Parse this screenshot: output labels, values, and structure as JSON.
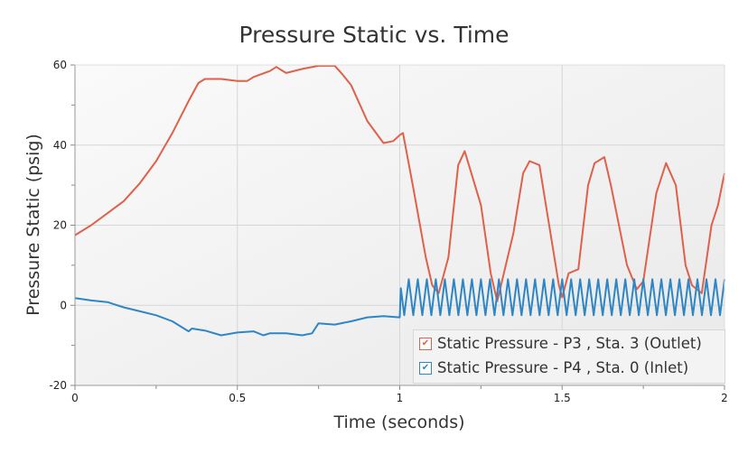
{
  "chart_data": {
    "type": "line",
    "title": "Pressure Static vs. Time",
    "xlabel": "Time (seconds)",
    "ylabel": "Pressure Static (psig)",
    "xlim": [
      0,
      2
    ],
    "ylim": [
      -20,
      60
    ],
    "xticks": [
      "0",
      "0.5",
      "1",
      "1.5",
      "2"
    ],
    "yticks": [
      "-20",
      "0",
      "20",
      "40",
      "60"
    ],
    "grid": true,
    "legend_position": "bottom-right",
    "series": [
      {
        "name": "Static Pressure - P3 , Sta. 3 (Outlet)",
        "color": "#e0604a",
        "x": [
          0,
          0.05,
          0.1,
          0.15,
          0.2,
          0.25,
          0.3,
          0.35,
          0.38,
          0.4,
          0.45,
          0.5,
          0.53,
          0.55,
          0.6,
          0.62,
          0.65,
          0.7,
          0.75,
          0.8,
          0.82,
          0.85,
          0.9,
          0.95,
          0.98,
          1.0,
          1.01,
          1.04,
          1.08,
          1.1,
          1.12,
          1.15,
          1.18,
          1.2,
          1.25,
          1.28,
          1.3,
          1.35,
          1.38,
          1.4,
          1.43,
          1.46,
          1.49,
          1.5,
          1.52,
          1.55,
          1.58,
          1.6,
          1.63,
          1.65,
          1.7,
          1.73,
          1.75,
          1.79,
          1.82,
          1.85,
          1.88,
          1.9,
          1.93,
          1.96,
          1.98,
          2.0
        ],
        "y": [
          17.5,
          20,
          23,
          26,
          30.5,
          36,
          43,
          51,
          55.5,
          56.5,
          56.5,
          56,
          56,
          57,
          58.5,
          59.5,
          58,
          59,
          59.8,
          59.8,
          58,
          55,
          46,
          40.5,
          41,
          42.5,
          43,
          30,
          12,
          5,
          3,
          12,
          35,
          38.5,
          25,
          8,
          1,
          18,
          33,
          36,
          35,
          20,
          5,
          2,
          8,
          9,
          30,
          35.5,
          37,
          30,
          10,
          4,
          6,
          28,
          35.5,
          30,
          10,
          5,
          3,
          20,
          25,
          33
        ]
      },
      {
        "name": "Static Pressure - P4 , Sta. 0 (Inlet)",
        "color": "#2e86c4",
        "x": [
          0,
          0.05,
          0.1,
          0.15,
          0.2,
          0.25,
          0.3,
          0.35,
          0.36,
          0.4,
          0.45,
          0.5,
          0.55,
          0.58,
          0.6,
          0.65,
          0.7,
          0.73,
          0.75,
          0.8,
          0.85,
          0.9,
          0.95,
          1.0
        ],
        "y": [
          1.8,
          1.2,
          0.8,
          -0.5,
          -1.5,
          -2.5,
          -4,
          -6.5,
          -5.8,
          -6.3,
          -7.5,
          -6.8,
          -6.5,
          -7.5,
          -7,
          -7,
          -7.5,
          -7,
          -4.5,
          -4.8,
          -4,
          -3,
          -2.7,
          -3
        ],
        "oscillation": {
          "t_start": 1.0,
          "t_end": 2.0,
          "cycles": 36,
          "min": -2.5,
          "max": 6.5
        }
      }
    ]
  }
}
